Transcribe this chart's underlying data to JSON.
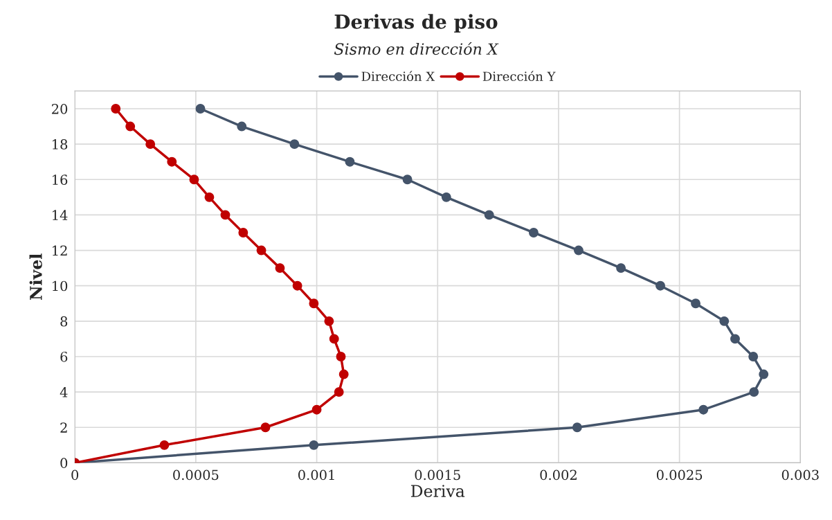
{
  "chart_data": {
    "type": "line",
    "title": "Derivas de piso",
    "subtitle": "Sismo en dirección X",
    "xlabel": "Deriva",
    "ylabel": "Nivel",
    "xlim": [
      0,
      0.003
    ],
    "xticks": [
      0,
      0.0005,
      0.001,
      0.0015,
      0.002,
      0.0025,
      0.003
    ],
    "ylim": [
      0,
      21
    ],
    "yticks": [
      0,
      2,
      4,
      6,
      8,
      10,
      12,
      14,
      16,
      18,
      20
    ],
    "grid": true,
    "legend": "top",
    "marker": "circle",
    "line_style": "solid",
    "series": [
      {
        "name": "Dirección X",
        "color": "#44546a",
        "x": [
          0,
          0.000988,
          0.002077,
          0.002599,
          0.002808,
          0.002848,
          0.002805,
          0.00273,
          0.002685,
          0.002567,
          0.002421,
          0.002258,
          0.002083,
          0.001897,
          0.001713,
          0.001536,
          0.001375,
          0.001137,
          0.000908,
          0.00069,
          0.000519
        ],
        "values": [
          0,
          1,
          2,
          3,
          4,
          5,
          6,
          7,
          8,
          9,
          10,
          11,
          12,
          13,
          14,
          15,
          16,
          17,
          18,
          19,
          20
        ]
      },
      {
        "name": "Dirección Y",
        "color": "#c00000",
        "x": [
          0,
          0.00037,
          0.000788,
          0.001,
          0.001092,
          0.001112,
          0.0011,
          0.001072,
          0.001051,
          0.000988,
          0.00092,
          0.000848,
          0.000771,
          0.000696,
          0.000622,
          0.000556,
          0.000493,
          0.000401,
          0.000312,
          0.000229,
          0.000169
        ],
        "values": [
          0,
          1,
          2,
          3,
          4,
          5,
          6,
          7,
          8,
          9,
          10,
          11,
          12,
          13,
          14,
          15,
          16,
          17,
          18,
          19,
          20
        ]
      }
    ]
  }
}
